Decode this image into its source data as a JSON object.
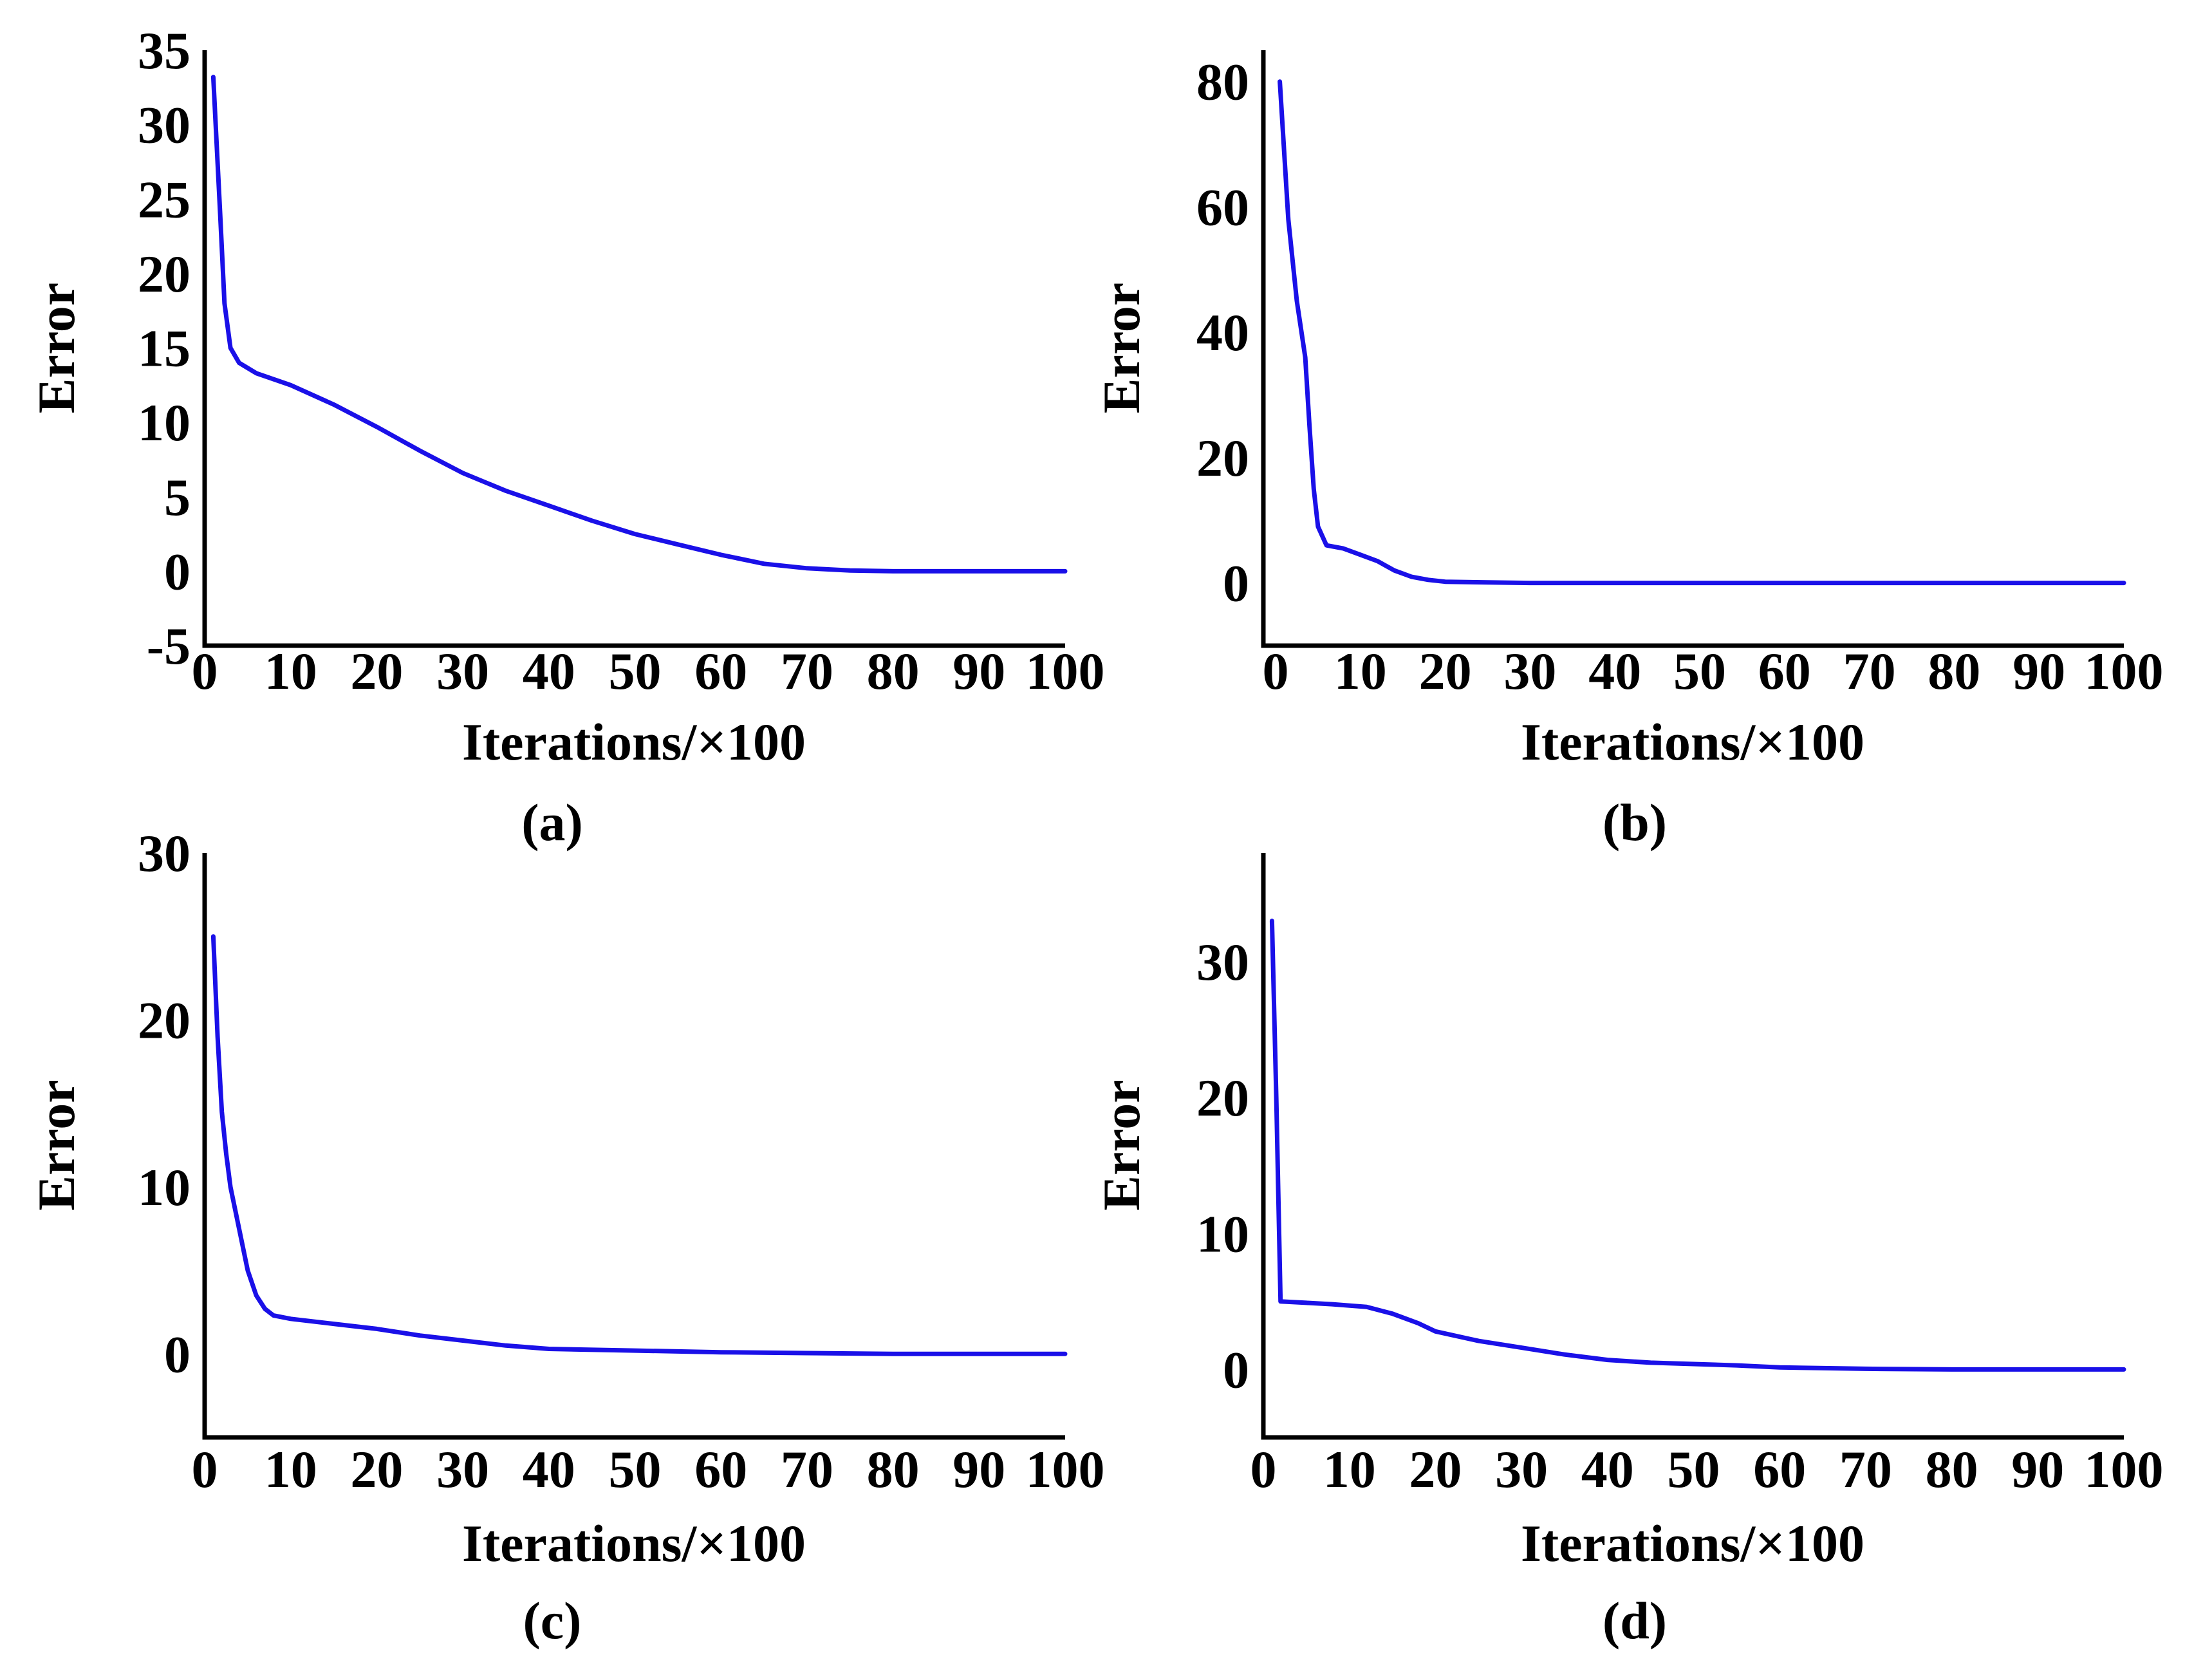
{
  "chart_data": [
    {
      "type": "line",
      "panel_label": "(a)",
      "xlabel": "Iterations/×100",
      "ylabel": "Error",
      "xlim": [
        0,
        100
      ],
      "ylim": [
        -5,
        35
      ],
      "xticks": [
        "0",
        "10",
        "20",
        "30",
        "40",
        "50",
        "60",
        "70",
        "80",
        "90",
        "100"
      ],
      "yticks": [
        "35",
        "30",
        "25",
        "20",
        "15",
        "10",
        "5",
        "0",
        "-5"
      ],
      "ytick_values": [
        35,
        30,
        25,
        20,
        15,
        10,
        5,
        0,
        -5
      ],
      "series": [
        {
          "name": "Error",
          "color": "#1a10e8",
          "x": [
            1,
            1.8,
            2.3,
            3,
            4,
            6,
            10,
            15,
            20,
            25,
            30,
            35,
            40,
            45,
            50,
            55,
            60,
            65,
            70,
            75,
            80,
            85,
            90,
            95,
            100
          ],
          "y": [
            33.2,
            24,
            18,
            15,
            14,
            13.3,
            12.5,
            11.2,
            9.7,
            8.1,
            6.6,
            5.4,
            4.4,
            3.4,
            2.5,
            1.8,
            1.1,
            0.5,
            0.2,
            0.05,
            0,
            0,
            0,
            0,
            0
          ]
        }
      ]
    },
    {
      "type": "line",
      "panel_label": "(b)",
      "xlabel": "Iterations/×100",
      "ylabel": "Error",
      "xlim": [
        0,
        100
      ],
      "ylim": [
        -10,
        85
      ],
      "xticks": [
        "0",
        "10",
        "20",
        "30",
        "40",
        "50",
        "60",
        "70",
        "80",
        "90",
        "100"
      ],
      "yticks": [
        "80",
        "60",
        "40",
        "20",
        "0"
      ],
      "ytick_values": [
        80,
        60,
        40,
        20,
        0
      ],
      "series": [
        {
          "name": "Error",
          "color": "#1a10e8",
          "x": [
            0.5,
            1.5,
            2.5,
            3.5,
            4,
            4.5,
            5,
            6,
            8,
            10,
            12,
            14,
            16,
            18,
            20,
            25,
            30,
            40,
            50,
            60,
            70,
            80,
            90,
            100
          ],
          "y": [
            80,
            58,
            45,
            36,
            25,
            15,
            9,
            6,
            5.5,
            4.5,
            3.5,
            2,
            1,
            0.5,
            0.2,
            0.1,
            0,
            0,
            0,
            0,
            0,
            0,
            0,
            0
          ]
        }
      ]
    },
    {
      "type": "line",
      "panel_label": "(c)",
      "xlabel": "Iterations/×100",
      "ylabel": "Error",
      "xlim": [
        0,
        100
      ],
      "ylim": [
        -5,
        30
      ],
      "xticks": [
        "0",
        "10",
        "20",
        "30",
        "40",
        "50",
        "60",
        "70",
        "80",
        "90",
        "100"
      ],
      "yticks": [
        "30",
        "20",
        "10",
        "0"
      ],
      "ytick_values": [
        30,
        20,
        10,
        0
      ],
      "series": [
        {
          "name": "Error",
          "color": "#1a10e8",
          "x": [
            1,
            1.5,
            2,
            2.5,
            3,
            4,
            5,
            6,
            7,
            8,
            10,
            15,
            20,
            25,
            30,
            35,
            40,
            50,
            60,
            70,
            80,
            90,
            100
          ],
          "y": [
            25,
            19,
            14.5,
            12,
            10,
            7.5,
            5,
            3.5,
            2.7,
            2.3,
            2.1,
            1.8,
            1.5,
            1.1,
            0.8,
            0.5,
            0.3,
            0.2,
            0.1,
            0.05,
            0,
            0,
            0
          ]
        }
      ]
    },
    {
      "type": "line",
      "panel_label": "(d)",
      "xlabel": "Iterations/×100",
      "ylabel": "Error",
      "xlim": [
        0,
        100
      ],
      "ylim": [
        -5,
        38
      ],
      "xticks": [
        "0",
        "10",
        "20",
        "30",
        "40",
        "50",
        "60",
        "70",
        "80",
        "90",
        "100"
      ],
      "yticks": [
        "30",
        "20",
        "10",
        "0"
      ],
      "ytick_values": [
        30,
        20,
        10,
        0
      ],
      "series": [
        {
          "name": "Error",
          "color": "#1a10e8",
          "x": [
            1,
            1.5,
            2,
            5,
            8,
            12,
            15,
            18,
            20,
            25,
            30,
            35,
            40,
            45,
            50,
            55,
            60,
            70,
            80,
            90,
            100
          ],
          "y": [
            33,
            20,
            5,
            4.9,
            4.8,
            4.6,
            4.1,
            3.4,
            2.8,
            2.1,
            1.6,
            1.1,
            0.7,
            0.5,
            0.4,
            0.3,
            0.15,
            0.05,
            0,
            0,
            0
          ]
        }
      ]
    }
  ]
}
